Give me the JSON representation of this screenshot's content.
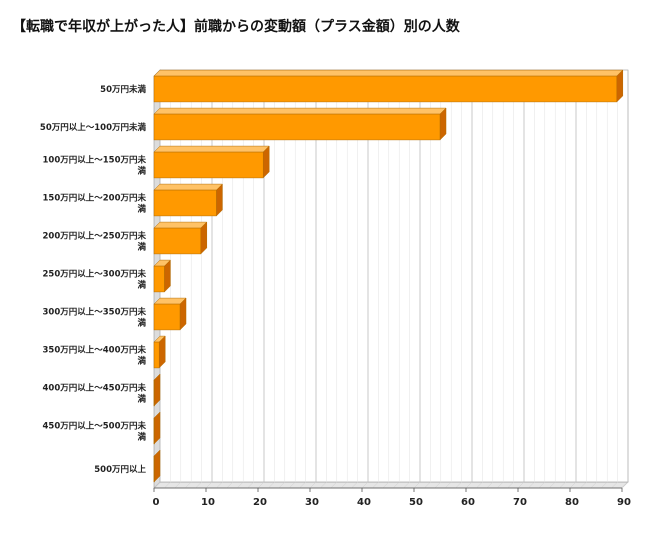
{
  "chart_data": {
    "type": "bar",
    "orientation": "horizontal",
    "title": "【転職で年収が上がった人】前職からの変動額（プラス金額）別の人数",
    "categories": [
      [
        "50万円未満"
      ],
      [
        "50万円以上～100万円未満"
      ],
      [
        "100万円以上～150万円未",
        "満"
      ],
      [
        "150万円以上～200万円未",
        "満"
      ],
      [
        "200万円以上～250万円未",
        "満"
      ],
      [
        "250万円以上～300万円未",
        "満"
      ],
      [
        "300万円以上～350万円未",
        "満"
      ],
      [
        "350万円以上～400万円未",
        "満"
      ],
      [
        "400万円以上～450万円未",
        "満"
      ],
      [
        "450万円以上～500万円未",
        "満"
      ],
      [
        "500万円以上"
      ]
    ],
    "values": [
      89,
      55,
      21,
      12,
      9,
      2,
      5,
      1,
      0,
      0,
      0
    ],
    "xlim": [
      0,
      90
    ],
    "xticks": [
      "0",
      "10",
      "20",
      "30",
      "40",
      "50",
      "60",
      "70",
      "80",
      "90"
    ],
    "grid": true,
    "bar_color": "#FF9900",
    "bar_side_color": "#CC6600",
    "bar_top_color": "#FFC266"
  }
}
